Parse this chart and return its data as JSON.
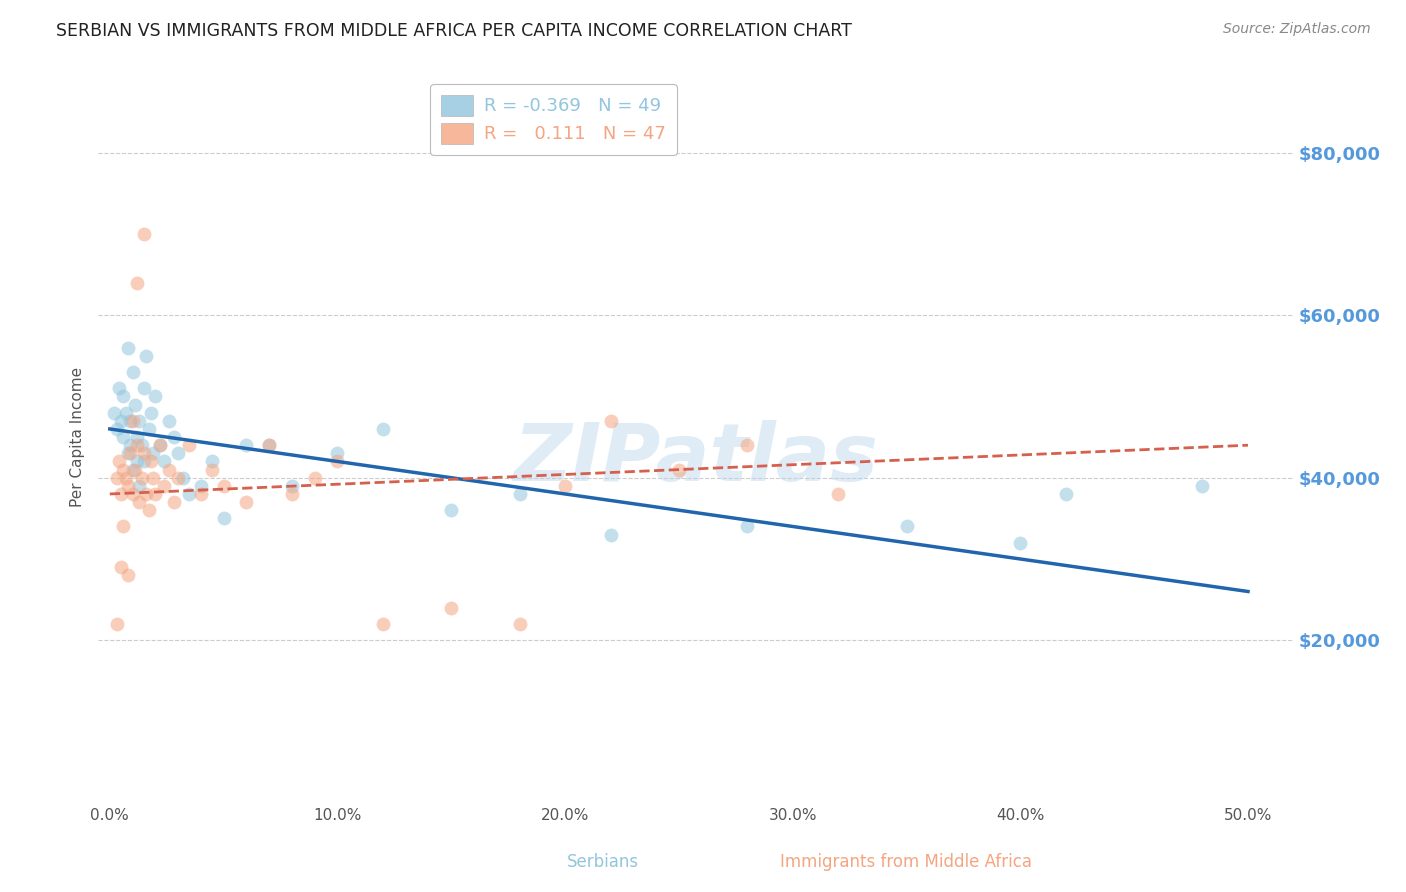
{
  "title": "SERBIAN VS IMMIGRANTS FROM MIDDLE AFRICA PER CAPITA INCOME CORRELATION CHART",
  "source": "Source: ZipAtlas.com",
  "xlabel_ticks": [
    "0.0%",
    "10.0%",
    "20.0%",
    "30.0%",
    "40.0%",
    "50.0%"
  ],
  "xlabel_values": [
    0.0,
    0.1,
    0.2,
    0.3,
    0.4,
    0.5
  ],
  "ylabel": "Per Capita Income",
  "ylim": [
    0,
    90000
  ],
  "xlim": [
    -0.005,
    0.52
  ],
  "ytick_vals": [
    20000,
    40000,
    60000,
    80000
  ],
  "ytick_labels": [
    "$20,000",
    "$40,000",
    "$60,000",
    "$80,000"
  ],
  "serbians_color": "#92c5de",
  "immigrants_color": "#f4a582",
  "trend_serbian_color": "#2166ac",
  "trend_immigrant_color": "#d6604d",
  "watermark": "ZIPatlas",
  "background_color": "#ffffff",
  "grid_color": "#cccccc",
  "title_color": "#222222",
  "right_tick_color": "#5599dd",
  "legend_serbian_label": "R = -0.369   N = 49",
  "legend_immigrant_label": "R =   0.111   N = 47",
  "bottom_legend_serbian": "Serbians",
  "bottom_legend_immigrant": "Immigrants from Middle Africa",
  "marker_size": 100,
  "marker_alpha": 0.55,
  "serbians_x": [
    0.002,
    0.003,
    0.004,
    0.005,
    0.006,
    0.006,
    0.007,
    0.008,
    0.008,
    0.009,
    0.009,
    0.01,
    0.01,
    0.011,
    0.012,
    0.012,
    0.013,
    0.013,
    0.014,
    0.015,
    0.015,
    0.016,
    0.017,
    0.018,
    0.019,
    0.02,
    0.022,
    0.024,
    0.026,
    0.028,
    0.03,
    0.032,
    0.035,
    0.04,
    0.045,
    0.05,
    0.06,
    0.07,
    0.08,
    0.1,
    0.12,
    0.15,
    0.18,
    0.22,
    0.28,
    0.35,
    0.4,
    0.42,
    0.48
  ],
  "serbians_y": [
    48000,
    46000,
    51000,
    47000,
    50000,
    45000,
    48000,
    56000,
    43000,
    47000,
    44000,
    53000,
    41000,
    49000,
    45000,
    42000,
    47000,
    39000,
    44000,
    51000,
    42000,
    55000,
    46000,
    48000,
    43000,
    50000,
    44000,
    42000,
    47000,
    45000,
    43000,
    40000,
    38000,
    39000,
    42000,
    35000,
    44000,
    44000,
    39000,
    43000,
    46000,
    36000,
    38000,
    33000,
    34000,
    34000,
    32000,
    38000,
    39000
  ],
  "immigrants_x": [
    0.003,
    0.004,
    0.005,
    0.006,
    0.007,
    0.008,
    0.009,
    0.01,
    0.011,
    0.012,
    0.013,
    0.014,
    0.015,
    0.016,
    0.017,
    0.018,
    0.019,
    0.02,
    0.022,
    0.024,
    0.026,
    0.028,
    0.03,
    0.035,
    0.04,
    0.045,
    0.05,
    0.06,
    0.07,
    0.08,
    0.09,
    0.1,
    0.12,
    0.15,
    0.18,
    0.2,
    0.22,
    0.25,
    0.28,
    0.32,
    0.015,
    0.012,
    0.01,
    0.008,
    0.006,
    0.005,
    0.003
  ],
  "immigrants_y": [
    40000,
    42000,
    38000,
    41000,
    40000,
    39000,
    43000,
    38000,
    41000,
    44000,
    37000,
    40000,
    43000,
    38000,
    36000,
    42000,
    40000,
    38000,
    44000,
    39000,
    41000,
    37000,
    40000,
    44000,
    38000,
    41000,
    39000,
    37000,
    44000,
    38000,
    40000,
    42000,
    22000,
    24000,
    22000,
    39000,
    47000,
    41000,
    44000,
    38000,
    70000,
    64000,
    47000,
    28000,
    34000,
    29000,
    22000
  ]
}
